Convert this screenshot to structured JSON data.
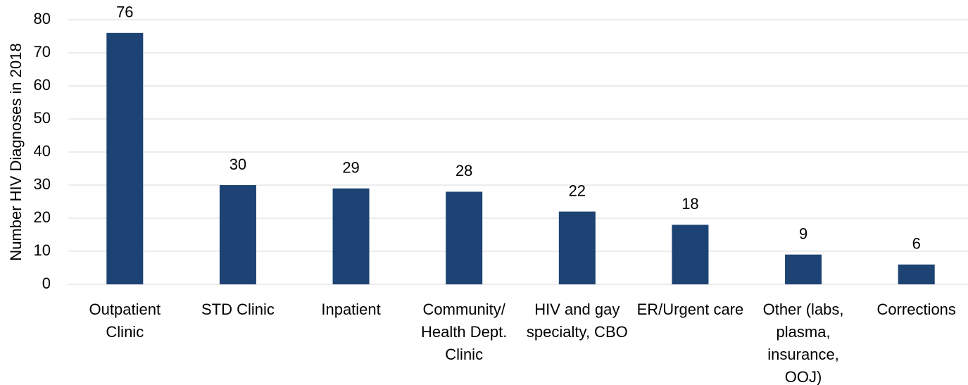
{
  "chart_data": {
    "type": "bar",
    "y_label": "Number HIV Diagnoses in 2018",
    "categories": [
      "Outpatient\nClinic",
      "STD Clinic",
      "Inpatient",
      "Community/\nHealth Dept.\nClinic",
      "HIV and gay\nspecialty, CBO",
      "ER/Urgent care",
      "Other (labs,\nplasma,\ninsurance,\nOOJ)",
      "Corrections"
    ],
    "values": [
      76,
      30,
      29,
      28,
      22,
      18,
      9,
      6
    ],
    "color": "#1c4373",
    "ylim": [
      0,
      80
    ],
    "yticks": [
      0,
      10,
      20,
      30,
      40,
      50,
      60,
      70,
      80
    ],
    "grid": true
  }
}
